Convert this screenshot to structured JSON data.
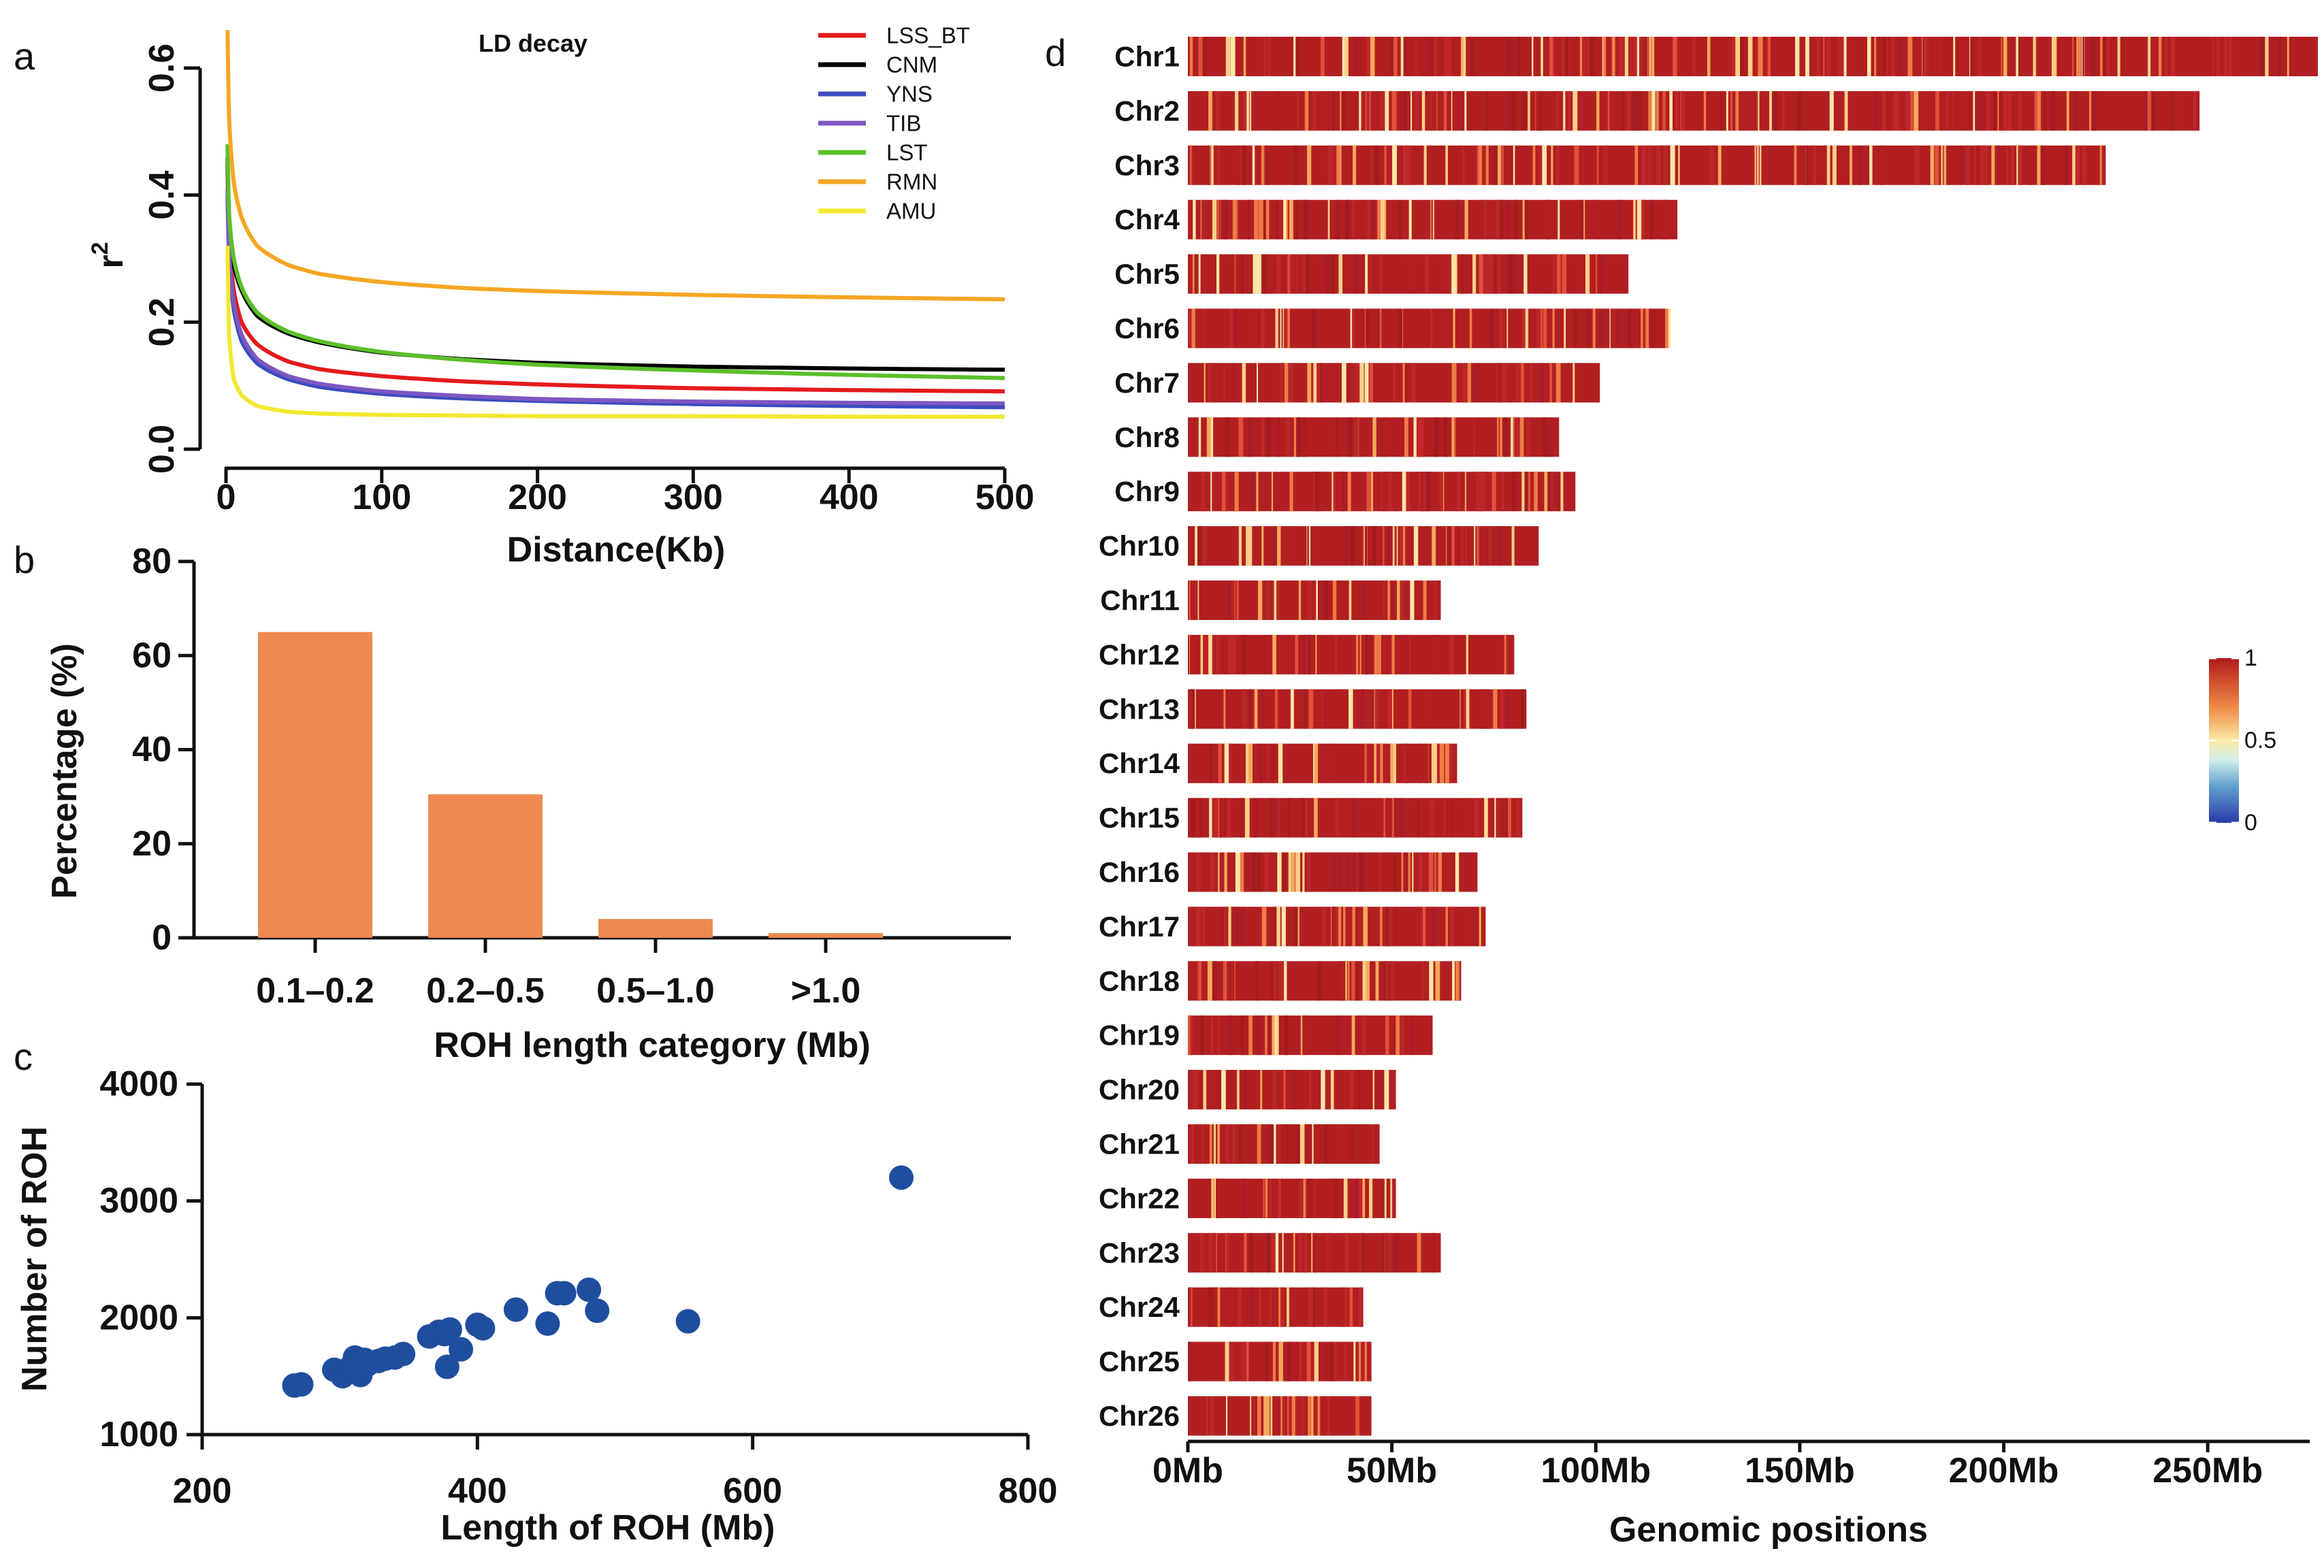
{
  "panels": {
    "a": {
      "label": "a"
    },
    "b": {
      "label": "b"
    },
    "c": {
      "label": "c"
    },
    "d": {
      "label": "d"
    }
  },
  "chart_data": [
    {
      "id": "a",
      "type": "line",
      "title": "LD decay",
      "xlabel": "Distance(Kb)",
      "ylabel": "r",
      "ylabel_sup": "2",
      "xlim": [
        0,
        500
      ],
      "ylim": [
        0,
        0.6
      ],
      "xticks": [
        0,
        100,
        200,
        300,
        400,
        500
      ],
      "xtick_labels": [
        "0",
        "100",
        "200",
        "300",
        "400",
        "500"
      ],
      "yticks": [
        0,
        0.2,
        0.4,
        0.6
      ],
      "ytick_labels": [
        "0.0",
        "0.2",
        "0.4",
        "0.6"
      ],
      "legend_position": "top-right",
      "grid": false,
      "x": [
        1,
        2,
        5,
        10,
        20,
        40,
        60,
        100,
        150,
        200,
        300,
        400,
        500
      ],
      "series": [
        {
          "name": "LSS_BT",
          "color": "#e41a1c",
          "values": [
            0.45,
            0.33,
            0.25,
            0.2,
            0.165,
            0.138,
            0.126,
            0.115,
            0.107,
            0.102,
            0.096,
            0.093,
            0.091
          ]
        },
        {
          "name": "CNM",
          "color": "#000000",
          "values": [
            0.46,
            0.36,
            0.29,
            0.25,
            0.21,
            0.182,
            0.168,
            0.152,
            0.142,
            0.136,
            0.13,
            0.127,
            0.125
          ]
        },
        {
          "name": "YNS",
          "color": "#3b4cc0",
          "values": [
            0.4,
            0.3,
            0.22,
            0.17,
            0.135,
            0.11,
            0.098,
            0.087,
            0.08,
            0.076,
            0.071,
            0.068,
            0.066
          ]
        },
        {
          "name": "TIB",
          "color": "#7e57c2",
          "values": [
            0.41,
            0.31,
            0.23,
            0.18,
            0.142,
            0.115,
            0.103,
            0.091,
            0.084,
            0.079,
            0.075,
            0.073,
            0.072
          ]
        },
        {
          "name": "LST",
          "color": "#5cbf2a",
          "values": [
            0.48,
            0.37,
            0.3,
            0.255,
            0.215,
            0.185,
            0.17,
            0.153,
            0.141,
            0.133,
            0.124,
            0.117,
            0.112
          ]
        },
        {
          "name": "RMN",
          "color": "#f5a623",
          "values": [
            0.66,
            0.52,
            0.42,
            0.365,
            0.32,
            0.29,
            0.276,
            0.263,
            0.254,
            0.249,
            0.243,
            0.239,
            0.236
          ]
        },
        {
          "name": "AMU",
          "color": "#f2e830",
          "values": [
            0.32,
            0.18,
            0.11,
            0.085,
            0.068,
            0.059,
            0.056,
            0.054,
            0.053,
            0.052,
            0.052,
            0.051,
            0.051
          ]
        }
      ]
    },
    {
      "id": "b",
      "type": "bar",
      "title": "",
      "xlabel": "ROH length category (Mb)",
      "ylabel": "Percentage (%)",
      "categories": [
        "0.1–0.2",
        "0.2–0.5",
        "0.5–1.0",
        ">1.0"
      ],
      "values": [
        65,
        30.5,
        4,
        1
      ],
      "ylim": [
        0,
        80
      ],
      "yticks": [
        0,
        20,
        40,
        60,
        80
      ],
      "ytick_labels": [
        "0",
        "20",
        "40",
        "60",
        "80"
      ],
      "color": "#ee8a50",
      "grid": false
    },
    {
      "id": "c",
      "type": "scatter",
      "title": "",
      "xlabel": "Length of ROH (Mb)",
      "ylabel": "Number of ROH",
      "xlim": [
        200,
        800
      ],
      "ylim": [
        1000,
        4000
      ],
      "xticks": [
        200,
        400,
        600,
        800
      ],
      "xtick_labels": [
        "200",
        "400",
        "600",
        "800"
      ],
      "yticks": [
        1000,
        2000,
        3000,
        4000
      ],
      "ytick_labels": [
        "1000",
        "2000",
        "3000",
        "4000"
      ],
      "color": "#1f4e9e",
      "grid": false,
      "points": [
        [
          267,
          1420
        ],
        [
          272,
          1430
        ],
        [
          296,
          1555
        ],
        [
          302,
          1500
        ],
        [
          308,
          1580
        ],
        [
          311,
          1660
        ],
        [
          315,
          1510
        ],
        [
          318,
          1640
        ],
        [
          320,
          1600
        ],
        [
          328,
          1630
        ],
        [
          333,
          1650
        ],
        [
          340,
          1660
        ],
        [
          346,
          1690
        ],
        [
          365,
          1840
        ],
        [
          372,
          1880
        ],
        [
          376,
          1860
        ],
        [
          378,
          1580
        ],
        [
          380,
          1900
        ],
        [
          388,
          1730
        ],
        [
          400,
          1940
        ],
        [
          404,
          1910
        ],
        [
          428,
          2070
        ],
        [
          451,
          1950
        ],
        [
          458,
          2210
        ],
        [
          463,
          2210
        ],
        [
          481,
          2240
        ],
        [
          487,
          2060
        ],
        [
          553,
          1970
        ],
        [
          708,
          3200
        ]
      ]
    },
    {
      "id": "d",
      "type": "heatmap",
      "title": "",
      "xlabel": "Genomic positions",
      "ylabel": "",
      "xlim": [
        0,
        275
      ],
      "xticks": [
        0,
        50,
        100,
        150,
        200,
        250
      ],
      "xtick_labels": [
        "0Mb",
        "50Mb",
        "100Mb",
        "150Mb",
        "200Mb",
        "250Mb"
      ],
      "colorbar": {
        "min": 0,
        "max": 1,
        "ticks": [
          0,
          0.5,
          1
        ],
        "tick_labels": [
          "0",
          "0.5",
          "1"
        ],
        "stops": [
          "#2b3aa8",
          "#bfe5e6",
          "#f9e8a3",
          "#e86a3a",
          "#b21a1a"
        ]
      },
      "chromosomes": [
        {
          "name": "Chr1",
          "length_mb": 277
        },
        {
          "name": "Chr2",
          "length_mb": 248
        },
        {
          "name": "Chr3",
          "length_mb": 225
        },
        {
          "name": "Chr4",
          "length_mb": 120
        },
        {
          "name": "Chr5",
          "length_mb": 108
        },
        {
          "name": "Chr6",
          "length_mb": 118
        },
        {
          "name": "Chr7",
          "length_mb": 101
        },
        {
          "name": "Chr8",
          "length_mb": 91
        },
        {
          "name": "Chr9",
          "length_mb": 95
        },
        {
          "name": "Chr10",
          "length_mb": 86
        },
        {
          "name": "Chr11",
          "length_mb": 62
        },
        {
          "name": "Chr12",
          "length_mb": 80
        },
        {
          "name": "Chr13",
          "length_mb": 83
        },
        {
          "name": "Chr14",
          "length_mb": 66
        },
        {
          "name": "Chr15",
          "length_mb": 82
        },
        {
          "name": "Chr16",
          "length_mb": 71
        },
        {
          "name": "Chr17",
          "length_mb": 73
        },
        {
          "name": "Chr18",
          "length_mb": 67
        },
        {
          "name": "Chr19",
          "length_mb": 60
        },
        {
          "name": "Chr20",
          "length_mb": 51
        },
        {
          "name": "Chr21",
          "length_mb": 47
        },
        {
          "name": "Chr22",
          "length_mb": 51
        },
        {
          "name": "Chr23",
          "length_mb": 62
        },
        {
          "name": "Chr24",
          "length_mb": 43
        },
        {
          "name": "Chr25",
          "length_mb": 45
        },
        {
          "name": "Chr26",
          "length_mb": 45
        }
      ]
    }
  ]
}
